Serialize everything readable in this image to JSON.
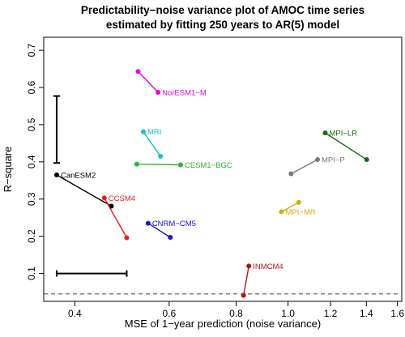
{
  "chart_data": {
    "type": "scatter",
    "title_lines": [
      "Predictability−noise variance plot of AMOC time series",
      "estimated by fitting 250 years to AR(5) model"
    ],
    "xlabel": "MSE of 1−year prediction (noise variance)",
    "ylabel": "R−square",
    "x_scale": "log",
    "xlim": [
      0.35,
      1.63
    ],
    "ylim": [
      0.025,
      0.735
    ],
    "x_ticks": [
      0.4,
      0.6,
      0.8,
      1.0,
      1.2,
      1.4,
      1.6
    ],
    "x_tick_labels": [
      "0.4",
      "0.6",
      "0.8",
      "1.0",
      "1.2",
      "1.4",
      "1.6"
    ],
    "y_ticks": [
      0.1,
      0.2,
      0.3,
      0.4,
      0.5,
      0.6,
      0.7
    ],
    "y_tick_labels": [
      "0.1",
      "0.2",
      "0.3",
      "0.4",
      "0.5",
      "0.6",
      "0.7"
    ],
    "grid": false,
    "reference_line": {
      "y": 0.045,
      "style": "dashed",
      "color": "#555555"
    },
    "error_bars": {
      "vertical": {
        "x": 0.37,
        "y_low": 0.397,
        "y_high": 0.577
      },
      "horizontal": {
        "y": 0.1,
        "x_low": 0.37,
        "x_high": 0.5
      }
    },
    "series": [
      {
        "name": "NorESM1−M",
        "color": "#e600e6",
        "points": [
          [
            0.525,
            0.643
          ],
          [
            0.572,
            0.587
          ]
        ],
        "label_at": 1,
        "label_side": "right"
      },
      {
        "name": "MRI",
        "color": "#17c3c3",
        "points": [
          [
            0.537,
            0.481
          ],
          [
            0.578,
            0.415
          ]
        ],
        "label_at": 0,
        "label_side": "right"
      },
      {
        "name": "CESM1−BGC",
        "color": "#2ab52a",
        "points": [
          [
            0.522,
            0.394
          ],
          [
            0.63,
            0.392
          ]
        ],
        "label_at": 1,
        "label_side": "right"
      },
      {
        "name": "CanESM2",
        "color": "#000000",
        "points": [
          [
            0.37,
            0.365
          ],
          [
            0.468,
            0.281
          ]
        ],
        "label_at": 0,
        "label_side": "right"
      },
      {
        "name": "CCSM4",
        "color": "#ee1b1b",
        "points": [
          [
            0.454,
            0.303
          ],
          [
            0.5,
            0.196
          ]
        ],
        "label_at": 0,
        "label_side": "right"
      },
      {
        "name": "CNRM−CM5",
        "color": "#1515d8",
        "points": [
          [
            0.548,
            0.235
          ],
          [
            0.603,
            0.197
          ]
        ],
        "label_at": 0,
        "label_side": "right"
      },
      {
        "name": "INMCM4",
        "color": "#b01515",
        "points": [
          [
            0.826,
            0.041
          ],
          [
            0.845,
            0.12
          ]
        ],
        "label_at": 1,
        "label_side": "right"
      },
      {
        "name": "MPI−LR",
        "color": "#136b13",
        "points": [
          [
            1.173,
            0.478
          ],
          [
            1.402,
            0.406
          ]
        ],
        "label_at": 0,
        "label_side": "right"
      },
      {
        "name": "MPI−P",
        "color": "#7a7a7a",
        "points": [
          [
            1.013,
            0.368
          ],
          [
            1.135,
            0.406
          ]
        ],
        "label_at": 1,
        "label_side": "right"
      },
      {
        "name": "MPI−MR",
        "color": "#d4ac0d",
        "points": [
          [
            0.972,
            0.266
          ],
          [
            1.047,
            0.291
          ]
        ],
        "label_at": 0,
        "label_side": "right"
      }
    ]
  }
}
